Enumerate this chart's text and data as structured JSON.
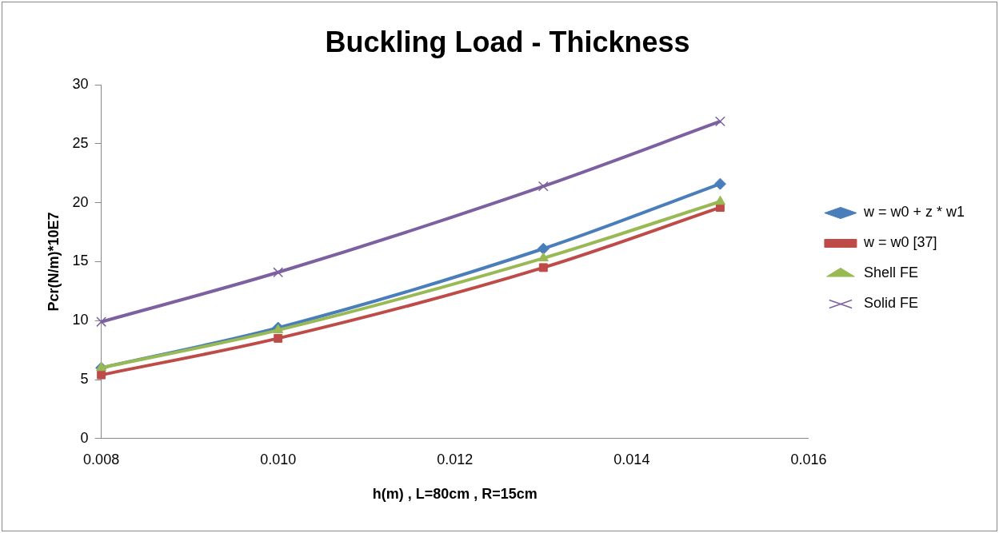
{
  "chart_data": {
    "type": "line",
    "title": "Buckling Load - Thickness",
    "xlabel": "h(m) , L=80cm , R=15cm",
    "ylabel": "Pcr(N/m)*10E7",
    "x": [
      0.008,
      0.01,
      0.013,
      0.015
    ],
    "series": [
      {
        "name": "w = w0 + z * w1",
        "color": "#4a7ebb",
        "marker": "diamond",
        "values": [
          6.0,
          9.4,
          16.1,
          21.6
        ]
      },
      {
        "name": "w = w0 [37]",
        "color": "#be4b48",
        "marker": "square",
        "values": [
          5.4,
          8.5,
          14.5,
          19.6
        ]
      },
      {
        "name": "Shell FE",
        "color": "#98b954",
        "marker": "triangle",
        "values": [
          6.0,
          9.2,
          15.3,
          20.1
        ]
      },
      {
        "name": "Solid FE",
        "color": "#7d60a0",
        "marker": "cross",
        "values": [
          9.9,
          14.1,
          21.4,
          26.9
        ]
      }
    ],
    "xlim": [
      0.008,
      0.016
    ],
    "xticks": [
      {
        "value": 0.008,
        "label": "0.008"
      },
      {
        "value": 0.01,
        "label": "0.010"
      },
      {
        "value": 0.012,
        "label": "0.012"
      },
      {
        "value": 0.014,
        "label": "0.014"
      },
      {
        "value": 0.016,
        "label": "0.016"
      }
    ],
    "ylim": [
      0,
      30
    ],
    "yticks": [
      0,
      5,
      10,
      15,
      20,
      25,
      30
    ],
    "grid": false,
    "legend": "right",
    "line_style": "solid"
  }
}
